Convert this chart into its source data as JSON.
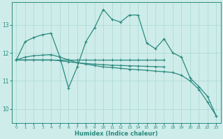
{
  "xlabel": "Humidex (Indice chaleur)",
  "x": [
    0,
    1,
    2,
    3,
    4,
    5,
    6,
    7,
    8,
    9,
    10,
    11,
    12,
    13,
    14,
    15,
    16,
    17,
    18,
    19,
    20,
    21,
    22,
    23
  ],
  "line1": [
    11.75,
    12.4,
    12.55,
    12.65,
    12.7,
    11.85,
    10.75,
    11.5,
    12.4,
    12.9,
    13.55,
    13.2,
    13.1,
    13.35,
    13.35,
    12.35,
    12.15,
    12.5,
    12.0,
    11.85,
    11.1,
    10.8,
    10.45,
    9.75
  ],
  "line2": [
    11.75,
    11.75,
    11.75,
    11.75,
    11.75,
    11.75,
    11.75,
    11.75,
    11.75,
    11.75,
    11.75,
    11.75,
    11.75,
    11.75,
    11.75,
    11.75,
    11.75,
    11.75,
    null,
    null,
    null,
    null,
    null,
    null
  ],
  "line3": [
    11.75,
    11.85,
    11.9,
    11.92,
    11.94,
    11.85,
    11.75,
    11.65,
    11.6,
    11.55,
    11.5,
    11.48,
    11.45,
    11.42,
    11.4,
    11.38,
    11.35,
    11.33,
    11.3,
    11.2,
    11.0,
    10.7,
    10.25,
    9.75
  ],
  "line4": [
    11.75,
    11.75,
    11.75,
    11.75,
    11.75,
    11.72,
    11.68,
    11.65,
    11.62,
    11.6,
    11.58,
    11.56,
    11.55,
    11.54,
    11.53,
    11.52,
    11.51,
    11.5,
    null,
    null,
    null,
    null,
    null,
    null
  ],
  "color": "#2a8a7e",
  "bg_color": "#ceecea",
  "grid_color": "#a8d8d4",
  "ylim": [
    9.5,
    13.8
  ],
  "yticks": [
    10,
    11,
    12,
    13
  ],
  "xticks": [
    0,
    1,
    2,
    3,
    4,
    5,
    6,
    7,
    8,
    9,
    10,
    11,
    12,
    13,
    14,
    15,
    16,
    17,
    18,
    19,
    20,
    21,
    22,
    23
  ]
}
